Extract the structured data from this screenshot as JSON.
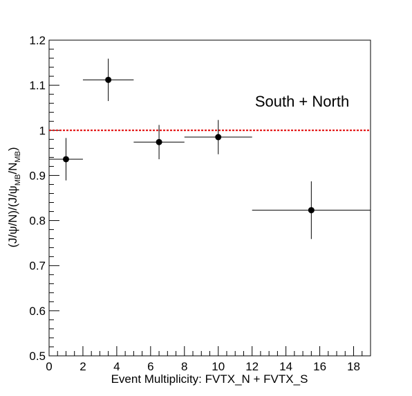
{
  "chart_data": {
    "type": "scatter",
    "title": "",
    "xlabel": "Event Multiplicity: FVTX_N + FVTX_S",
    "ylabel": {
      "parts": [
        "(J/ψ/N)/(J/ψ",
        "MB",
        "/N",
        "MB",
        ")"
      ]
    },
    "xlim": [
      0,
      19
    ],
    "ylim": [
      0.5,
      1.2
    ],
    "x_major_ticks": [
      0,
      2,
      4,
      6,
      8,
      10,
      12,
      14,
      16,
      18
    ],
    "x_tick_labels": [
      "0",
      "2",
      "4",
      "6",
      "8",
      "10",
      "12",
      "14",
      "16",
      "18"
    ],
    "y_major_ticks": [
      0.5,
      0.6,
      0.7,
      0.8,
      0.9,
      1.0,
      1.1,
      1.2
    ],
    "y_tick_labels": [
      "0.5",
      "0.6",
      "0.7",
      "0.8",
      "0.9",
      "1",
      "1.1",
      "1.2"
    ],
    "grid": false,
    "reference_line": {
      "y": 1.0,
      "color": "#e00000",
      "style": "dotted"
    },
    "annotation": "South + North",
    "marker_color": "#000000",
    "points": [
      {
        "x": 1.0,
        "y": 0.936,
        "x_low": 0.0,
        "x_high": 2.0,
        "y_err": 0.047
      },
      {
        "x": 3.5,
        "y": 1.112,
        "x_low": 2.0,
        "x_high": 5.0,
        "y_err": 0.047
      },
      {
        "x": 6.5,
        "y": 0.974,
        "x_low": 5.0,
        "x_high": 8.0,
        "y_err": 0.038
      },
      {
        "x": 10.0,
        "y": 0.985,
        "x_low": 8.0,
        "x_high": 12.0,
        "y_err": 0.038
      },
      {
        "x": 15.5,
        "y": 0.823,
        "x_low": 12.0,
        "x_high": 19.0,
        "y_err": 0.064
      }
    ]
  }
}
